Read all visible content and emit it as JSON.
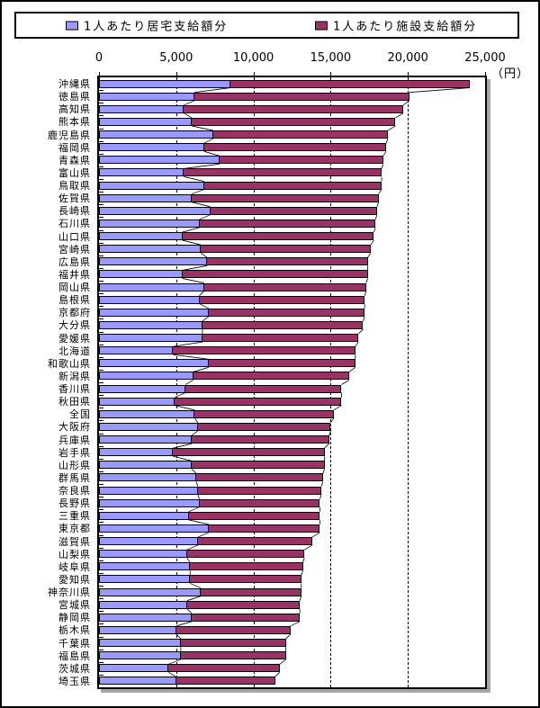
{
  "legend": {
    "items": [
      {
        "label": "1人あたり居宅支給額分",
        "color": "#9999ff"
      },
      {
        "label": "1人あたり施設支給額分",
        "color": "#993366"
      }
    ]
  },
  "axis": {
    "unit_label": "（円）",
    "ticks": [
      {
        "value": 0,
        "label": "0"
      },
      {
        "value": 5000,
        "label": "5,000"
      },
      {
        "value": 10000,
        "label": "10,000"
      },
      {
        "value": 15000,
        "label": "15,000"
      },
      {
        "value": 20000,
        "label": "20,000"
      },
      {
        "value": 25000,
        "label": "25,000"
      }
    ]
  },
  "chart_data": {
    "type": "bar",
    "orientation": "horizontal",
    "stacked": true,
    "title": "",
    "xlabel": "（円）",
    "ylabel": "",
    "xlim": [
      0,
      25000
    ],
    "gridlines": [
      5000,
      10000,
      15000,
      20000
    ],
    "grid": true,
    "legend_position": "top",
    "series_lines": true,
    "categories": [
      "沖縄県",
      "徳島県",
      "高知県",
      "熊本県",
      "鹿児島県",
      "福岡県",
      "青森県",
      "富山県",
      "鳥取県",
      "佐賀県",
      "長崎県",
      "石川県",
      "山口県",
      "宮崎県",
      "広島県",
      "福井県",
      "岡山県",
      "島根県",
      "京都府",
      "大分県",
      "愛媛県",
      "北海道",
      "和歌山県",
      "新潟県",
      "香川県",
      "秋田県",
      "全国",
      "大阪府",
      "兵庫県",
      "岩手県",
      "山形県",
      "群馬県",
      "奈良県",
      "長野県",
      "三重県",
      "東京都",
      "滋賀県",
      "山梨県",
      "岐阜県",
      "愛知県",
      "神奈川県",
      "宮城県",
      "静岡県",
      "栃木県",
      "千葉県",
      "福島県",
      "茨城県",
      "埼玉県"
    ],
    "series": [
      {
        "name": "1人あたり居宅支給額分",
        "color": "#9999ff",
        "values": [
          8500,
          6200,
          5500,
          6000,
          7400,
          6800,
          7800,
          5500,
          6800,
          6000,
          7200,
          6500,
          5400,
          6600,
          7000,
          5400,
          6800,
          6500,
          7100,
          6700,
          6700,
          4800,
          7100,
          6100,
          5600,
          4900,
          6200,
          6400,
          6000,
          4800,
          6000,
          6300,
          6400,
          6500,
          5800,
          7100,
          6400,
          5700,
          5900,
          5900,
          6600,
          5700,
          6000,
          5000,
          5300,
          5300,
          4500,
          5000
        ]
      },
      {
        "name": "1人あたり施設支給額分",
        "color": "#993366",
        "values": [
          15500,
          13900,
          14200,
          13200,
          11300,
          11800,
          10600,
          12800,
          11500,
          12100,
          10800,
          11400,
          12400,
          11000,
          10400,
          12000,
          10500,
          10700,
          10100,
          10400,
          10100,
          11800,
          9500,
          10100,
          10100,
          10800,
          9000,
          8600,
          8900,
          9800,
          8600,
          8200,
          8000,
          7800,
          8500,
          7200,
          7400,
          7600,
          7300,
          7200,
          6500,
          7300,
          7000,
          7400,
          6800,
          6800,
          7200,
          6400
        ]
      }
    ]
  }
}
